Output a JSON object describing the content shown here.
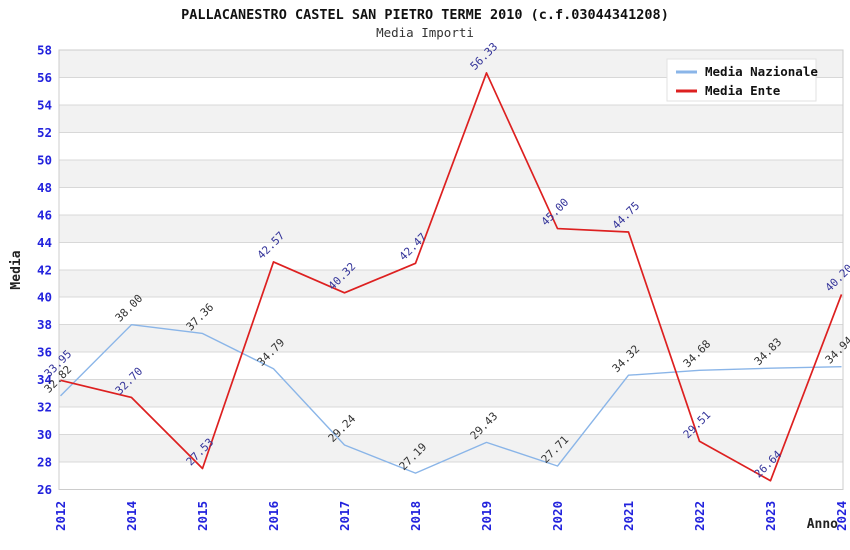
{
  "page": {
    "background": "#ffffff"
  },
  "chart_data": {
    "type": "line",
    "title": "PALLACANESTRO CASTEL SAN PIETRO TERME 2010 (c.f.03044341208)",
    "subtitle": "Media Importi",
    "xlabel": "Anno",
    "ylabel": "Media",
    "ylim": [
      26,
      58
    ],
    "y_ticks": [
      26,
      28,
      30,
      32,
      34,
      36,
      38,
      40,
      42,
      44,
      46,
      48,
      50,
      52,
      54,
      56,
      58
    ],
    "categories": [
      "2012",
      "2014",
      "2015",
      "2016",
      "2017",
      "2018",
      "2019",
      "2020",
      "2021",
      "2022",
      "2023",
      "2024"
    ],
    "series": [
      {
        "name": "Media Nazionale",
        "color": "#8ab5e8",
        "label_color": "#333333",
        "line_width": 1.4,
        "values": [
          32.82,
          38.0,
          37.36,
          34.79,
          29.24,
          27.19,
          29.43,
          27.71,
          34.32,
          34.68,
          34.83,
          34.94
        ],
        "labels": [
          "32.82",
          "38.00",
          "37.36",
          "34.79",
          "29.24",
          "27.19",
          "29.43",
          "27.71",
          "34.32",
          "34.68",
          "34.83",
          "34.94"
        ]
      },
      {
        "name": "Media Ente",
        "color": "#dd2020",
        "label_color": "#333399",
        "line_width": 1.7,
        "values": [
          33.95,
          32.7,
          27.53,
          42.57,
          40.32,
          42.47,
          56.33,
          45.0,
          44.75,
          29.51,
          26.64,
          40.2
        ],
        "labels": [
          "33.95",
          "32.70",
          "27.53",
          "42.57",
          "40.32",
          "42.47",
          "56.33",
          "45.00",
          "44.75",
          "29.51",
          "26.64",
          "40.20"
        ]
      }
    ],
    "legend_position": "top-right",
    "grid": "horizontal gridlines with alternating band fill, gray bands 28-30, 32-34, 36-38, 40-42, 44-46, 48-50, 52-54, 56-58"
  },
  "colors": {
    "tick_label": "#2323dd",
    "gridline": "#d8d8d8",
    "band_gray": "#f2f2f2",
    "plot_border": "#cccccc",
    "background": "#ffffff"
  }
}
